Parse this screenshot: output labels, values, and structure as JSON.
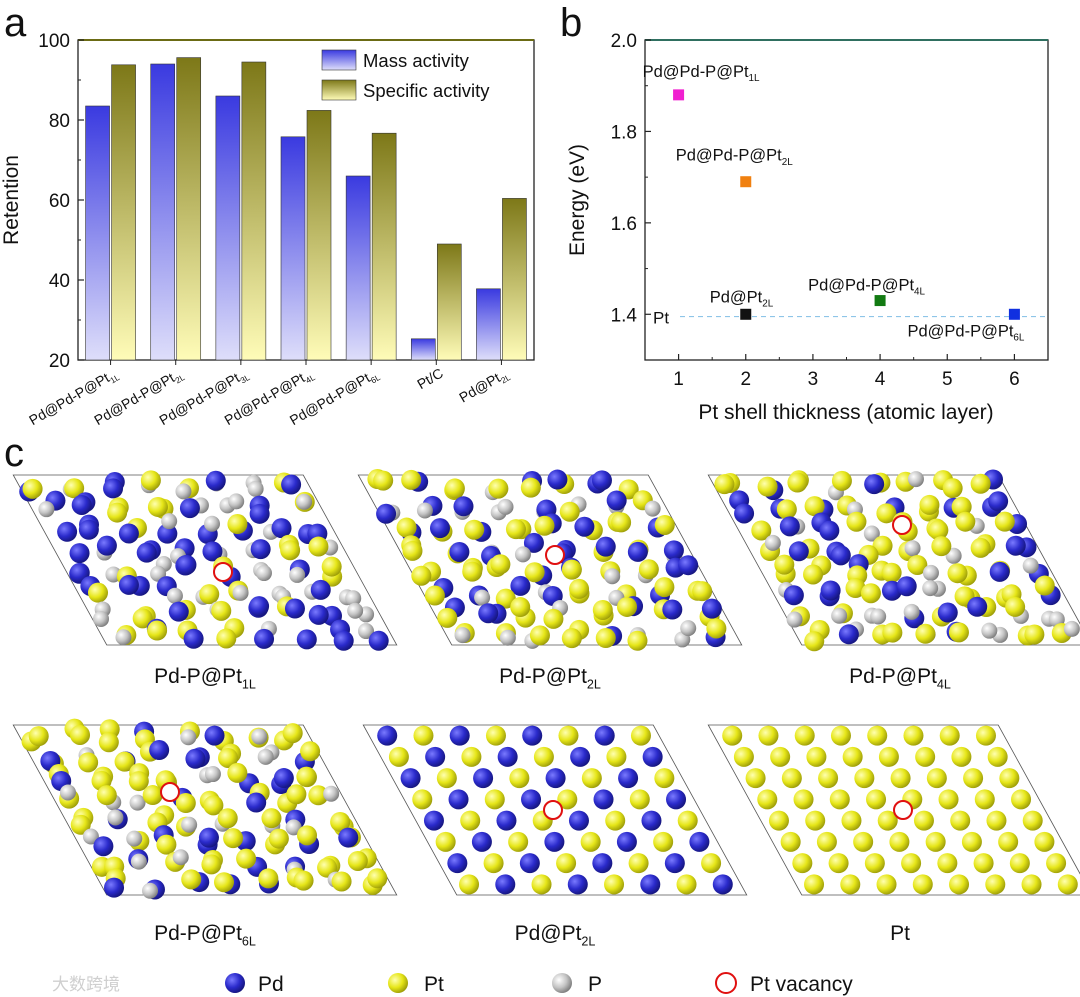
{
  "panels": {
    "a": "a",
    "b": "b",
    "c": "c"
  },
  "chart_data": [
    {
      "type": "bar",
      "panel": "a",
      "categories": [
        "Pd@Pd-P@Pt",
        "Pd@Pd-P@Pt",
        "Pd@Pd-P@Pt",
        "Pd@Pd-P@Pt",
        "Pd@Pd-P@Pt",
        "Pt/C",
        "Pd@Pt"
      ],
      "category_subscripts": [
        "1L",
        "2L",
        "3L",
        "4L",
        "6L",
        "",
        "2L"
      ],
      "series": [
        {
          "name": "Mass activity",
          "values": [
            83.5,
            94,
            86,
            75.8,
            66,
            25.3,
            37.8
          ]
        },
        {
          "name": "Specific activity",
          "values": [
            93.8,
            95.6,
            94.5,
            82.4,
            76.7,
            49,
            60.4
          ]
        }
      ],
      "ylabel": "Retention",
      "xlabel": "",
      "ylim": [
        20,
        100
      ],
      "yticks": [
        20,
        40,
        60,
        80,
        100
      ],
      "legend": "top-right",
      "colors": {
        "mass": "#3d3ee0",
        "mass_light": "#dcdcf8",
        "specific": "#807b1a",
        "specific_light": "#fffbb5"
      }
    },
    {
      "type": "scatter",
      "panel": "b",
      "points": [
        {
          "x": 1,
          "y": 1.88,
          "base": "Pd@Pd-P@Pt",
          "sub": "1L",
          "color": "#f020d0"
        },
        {
          "x": 2,
          "y": 1.69,
          "base": "Pd@Pd-P@Pt",
          "sub": "2L",
          "color": "#f08010"
        },
        {
          "x": 2,
          "y": 1.4,
          "base": "Pd@Pt",
          "sub": "2L",
          "color": "#111111"
        },
        {
          "x": 4,
          "y": 1.43,
          "base": "Pd@Pd-P@Pt",
          "sub": "4L",
          "color": "#127a12"
        },
        {
          "x": 6,
          "y": 1.4,
          "base": "Pd@Pd-P@Pt",
          "sub": "6L",
          "color": "#1030e0"
        }
      ],
      "reference": {
        "label": "Pt",
        "y": 1.395
      },
      "xlabel": "Pt shell thickness (atomic layer)",
      "ylabel": "Energy (eV)",
      "xlim": [
        0.5,
        6.5
      ],
      "ylim": [
        1.3,
        2.0
      ],
      "xticks": [
        1,
        2,
        3,
        4,
        5,
        6
      ],
      "yticks": [
        "1.4",
        "1.6",
        "1.8",
        "2.0"
      ]
    }
  ],
  "structures": [
    {
      "base": "Pd-P@Pt",
      "sub": "1L",
      "pd": 0.45,
      "pt": 0.25
    },
    {
      "base": "Pd-P@Pt",
      "sub": "2L",
      "pd": 0.3,
      "pt": 0.45
    },
    {
      "base": "Pd-P@Pt",
      "sub": "4L",
      "pd": 0.25,
      "pt": 0.55
    },
    {
      "base": "Pd-P@Pt",
      "sub": "6L",
      "pd": 0.22,
      "pt": 0.6
    },
    {
      "base": "Pd@Pt",
      "sub": "2L"
    },
    {
      "base": "Pt",
      "sub": ""
    }
  ],
  "legend": {
    "pd": "Pd",
    "pt": "Pt",
    "p": "P",
    "vacancy": "Pt vacancy"
  },
  "watermark": "大数跨境",
  "colors": {
    "pd": "#2a2acb",
    "pt": "#e6e618",
    "p": "#bdbdbd",
    "vacancy": "#e01010"
  }
}
